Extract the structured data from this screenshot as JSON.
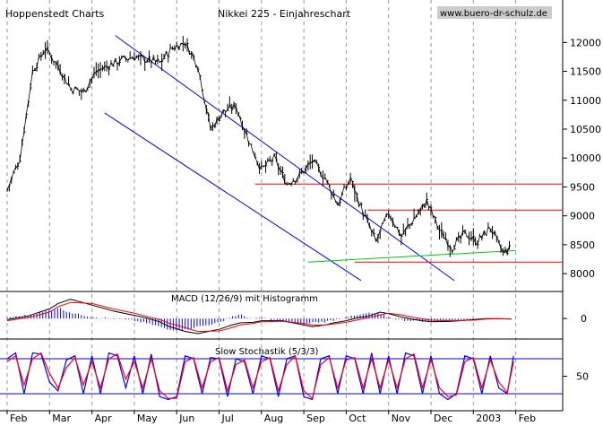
{
  "header": {
    "source": "Hoppenstedt Charts",
    "title": "Nikkei 225 - Einjahreschart",
    "website": "www.buero-dr-schulz.de"
  },
  "colors": {
    "price": "#000000",
    "trend_channel": "#0000ff",
    "resistance": "#ff0000",
    "support": "#00cc00",
    "grid": "#999999",
    "macd_hist": "#0000ff",
    "macd_line": "#000000",
    "signal_line": "#ff0000",
    "stoch_k": "#0000ff",
    "stoch_d": "#ff0000",
    "website_bg": "#cccccc"
  },
  "panels": {
    "macd_label": "MACD (12/26/9) mit Histogramm",
    "stoch_label": "Slow Stochastik (5/3/3)"
  },
  "chart_data": [
    {
      "type": "line",
      "name": "price",
      "x_labels": [
        "Feb",
        "Mar",
        "Apr",
        "May",
        "Jun",
        "Jul",
        "Aug",
        "Sep",
        "Oct",
        "Nov",
        "Dec",
        "2003",
        "Feb"
      ],
      "y_ticks": [
        8000,
        8500,
        9000,
        9500,
        10000,
        10500,
        11000,
        11500,
        12000
      ],
      "ylim": [
        7800,
        12300
      ],
      "grid": "vertical dashed",
      "x": [
        0,
        0.3,
        0.6,
        0.9,
        1.2,
        1.5,
        1.8,
        2.1,
        2.4,
        2.7,
        3.0,
        3.3,
        3.6,
        3.9,
        4.2,
        4.5,
        4.8,
        5.1,
        5.4,
        5.7,
        6.0,
        6.3,
        6.6,
        6.9,
        7.2,
        7.5,
        7.8,
        8.1,
        8.4,
        8.7,
        9.0,
        9.3,
        9.6,
        9.9,
        10.2,
        10.5,
        10.8,
        11.1,
        11.4,
        11.7,
        11.9
      ],
      "values": [
        9450,
        10000,
        11500,
        11900,
        11600,
        11200,
        11150,
        11500,
        11600,
        11700,
        11750,
        11700,
        11650,
        11900,
        12000,
        11600,
        10500,
        10800,
        10900,
        10300,
        9800,
        10000,
        9550,
        9700,
        9950,
        9650,
        9200,
        9650,
        9050,
        8550,
        9050,
        8650,
        8950,
        9250,
        8750,
        8450,
        8700,
        8550,
        8800,
        8350,
        8450
      ],
      "trend_channel_upper": {
        "x": [
          2.55,
          10.55
        ],
        "y": [
          12120,
          7880
        ]
      },
      "trend_channel_lower": {
        "x": [
          2.3,
          8.35
        ],
        "y": [
          10780,
          7880
        ]
      },
      "resistance_levels": [
        9550,
        9100
      ],
      "support_level": 8200,
      "uptrend_line": {
        "x": [
          7.1,
          12.0
        ],
        "y": [
          8200,
          8400
        ]
      }
    },
    {
      "type": "area",
      "name": "macd",
      "label": "MACD (12/26/9) mit Histogramm",
      "y_ticks": [
        0
      ],
      "ylim": [
        -330,
        420
      ],
      "x": [
        0,
        0.5,
        1.0,
        1.2,
        1.5,
        2.0,
        2.5,
        3.0,
        3.3,
        3.6,
        3.8,
        4.2,
        4.5,
        5.0,
        5.3,
        5.5,
        5.8,
        6.0,
        6.5,
        7.0,
        7.2,
        7.5,
        7.7,
        8.0,
        8.3,
        8.5,
        8.8,
        9.0,
        9.3,
        9.6,
        10.0,
        10.5,
        11.0,
        11.3,
        11.6,
        11.9
      ],
      "histogram": [
        20,
        60,
        150,
        200,
        110,
        30,
        0,
        -40,
        -90,
        -150,
        -210,
        -210,
        -150,
        -80,
        40,
        70,
        -10,
        20,
        -60,
        -110,
        -70,
        -60,
        -30,
        30,
        60,
        100,
        80,
        20,
        -30,
        -40,
        -60,
        -40,
        -20,
        0,
        -10,
        -5
      ],
      "macd_line": [
        -20,
        50,
        180,
        280,
        360,
        250,
        140,
        60,
        10,
        -60,
        -140,
        -240,
        -280,
        -200,
        -120,
        -80,
        -70,
        -40,
        -40,
        -120,
        -150,
        -120,
        -80,
        -40,
        20,
        40,
        120,
        90,
        30,
        -20,
        -60,
        -50,
        -20,
        0,
        0,
        -10
      ],
      "signal_line": [
        -40,
        20,
        120,
        220,
        300,
        280,
        180,
        100,
        40,
        -20,
        -80,
        -170,
        -240,
        -230,
        -170,
        -120,
        -90,
        -60,
        -50,
        -90,
        -120,
        -120,
        -100,
        -70,
        -20,
        10,
        70,
        100,
        70,
        20,
        -30,
        -40,
        -30,
        -10,
        -5,
        -8
      ]
    },
    {
      "type": "line",
      "name": "stochastic",
      "label": "Slow Stochastik (5/3/3)",
      "y_ticks": [
        50
      ],
      "ylim": [
        0,
        100
      ],
      "reference_levels": [
        80,
        20
      ],
      "x": [
        0,
        0.2,
        0.4,
        0.6,
        0.8,
        1.0,
        1.2,
        1.4,
        1.6,
        1.8,
        2.0,
        2.2,
        2.4,
        2.6,
        2.8,
        3.0,
        3.2,
        3.4,
        3.6,
        3.8,
        4.0,
        4.2,
        4.4,
        4.6,
        4.8,
        5.0,
        5.2,
        5.4,
        5.6,
        5.8,
        6.0,
        6.2,
        6.4,
        6.6,
        6.8,
        7.0,
        7.2,
        7.4,
        7.6,
        7.8,
        8.0,
        8.2,
        8.4,
        8.6,
        8.8,
        9.0,
        9.2,
        9.4,
        9.6,
        9.8,
        10.0,
        10.2,
        10.4,
        10.6,
        10.8,
        11.0,
        11.2,
        11.4,
        11.6,
        11.8,
        11.95
      ],
      "k_values": [
        80,
        90,
        20,
        90,
        88,
        40,
        25,
        78,
        85,
        20,
        85,
        20,
        90,
        85,
        30,
        85,
        20,
        88,
        15,
        10,
        15,
        85,
        80,
        20,
        82,
        80,
        15,
        80,
        75,
        20,
        85,
        80,
        15,
        80,
        85,
        15,
        10,
        80,
        85,
        20,
        85,
        80,
        20,
        90,
        20,
        85,
        20,
        90,
        85,
        20,
        85,
        20,
        10,
        20,
        85,
        80,
        20,
        85,
        30,
        20,
        85
      ],
      "d_values": [
        75,
        85,
        35,
        80,
        90,
        55,
        30,
        65,
        82,
        35,
        75,
        30,
        80,
        88,
        45,
        75,
        30,
        80,
        25,
        12,
        12,
        75,
        82,
        30,
        75,
        82,
        25,
        70,
        78,
        30,
        75,
        82,
        25,
        70,
        85,
        25,
        12,
        70,
        82,
        30,
        78,
        82,
        30,
        80,
        30,
        78,
        30,
        80,
        88,
        30,
        78,
        30,
        15,
        18,
        75,
        82,
        30,
        78,
        40,
        22,
        75
      ]
    }
  ]
}
